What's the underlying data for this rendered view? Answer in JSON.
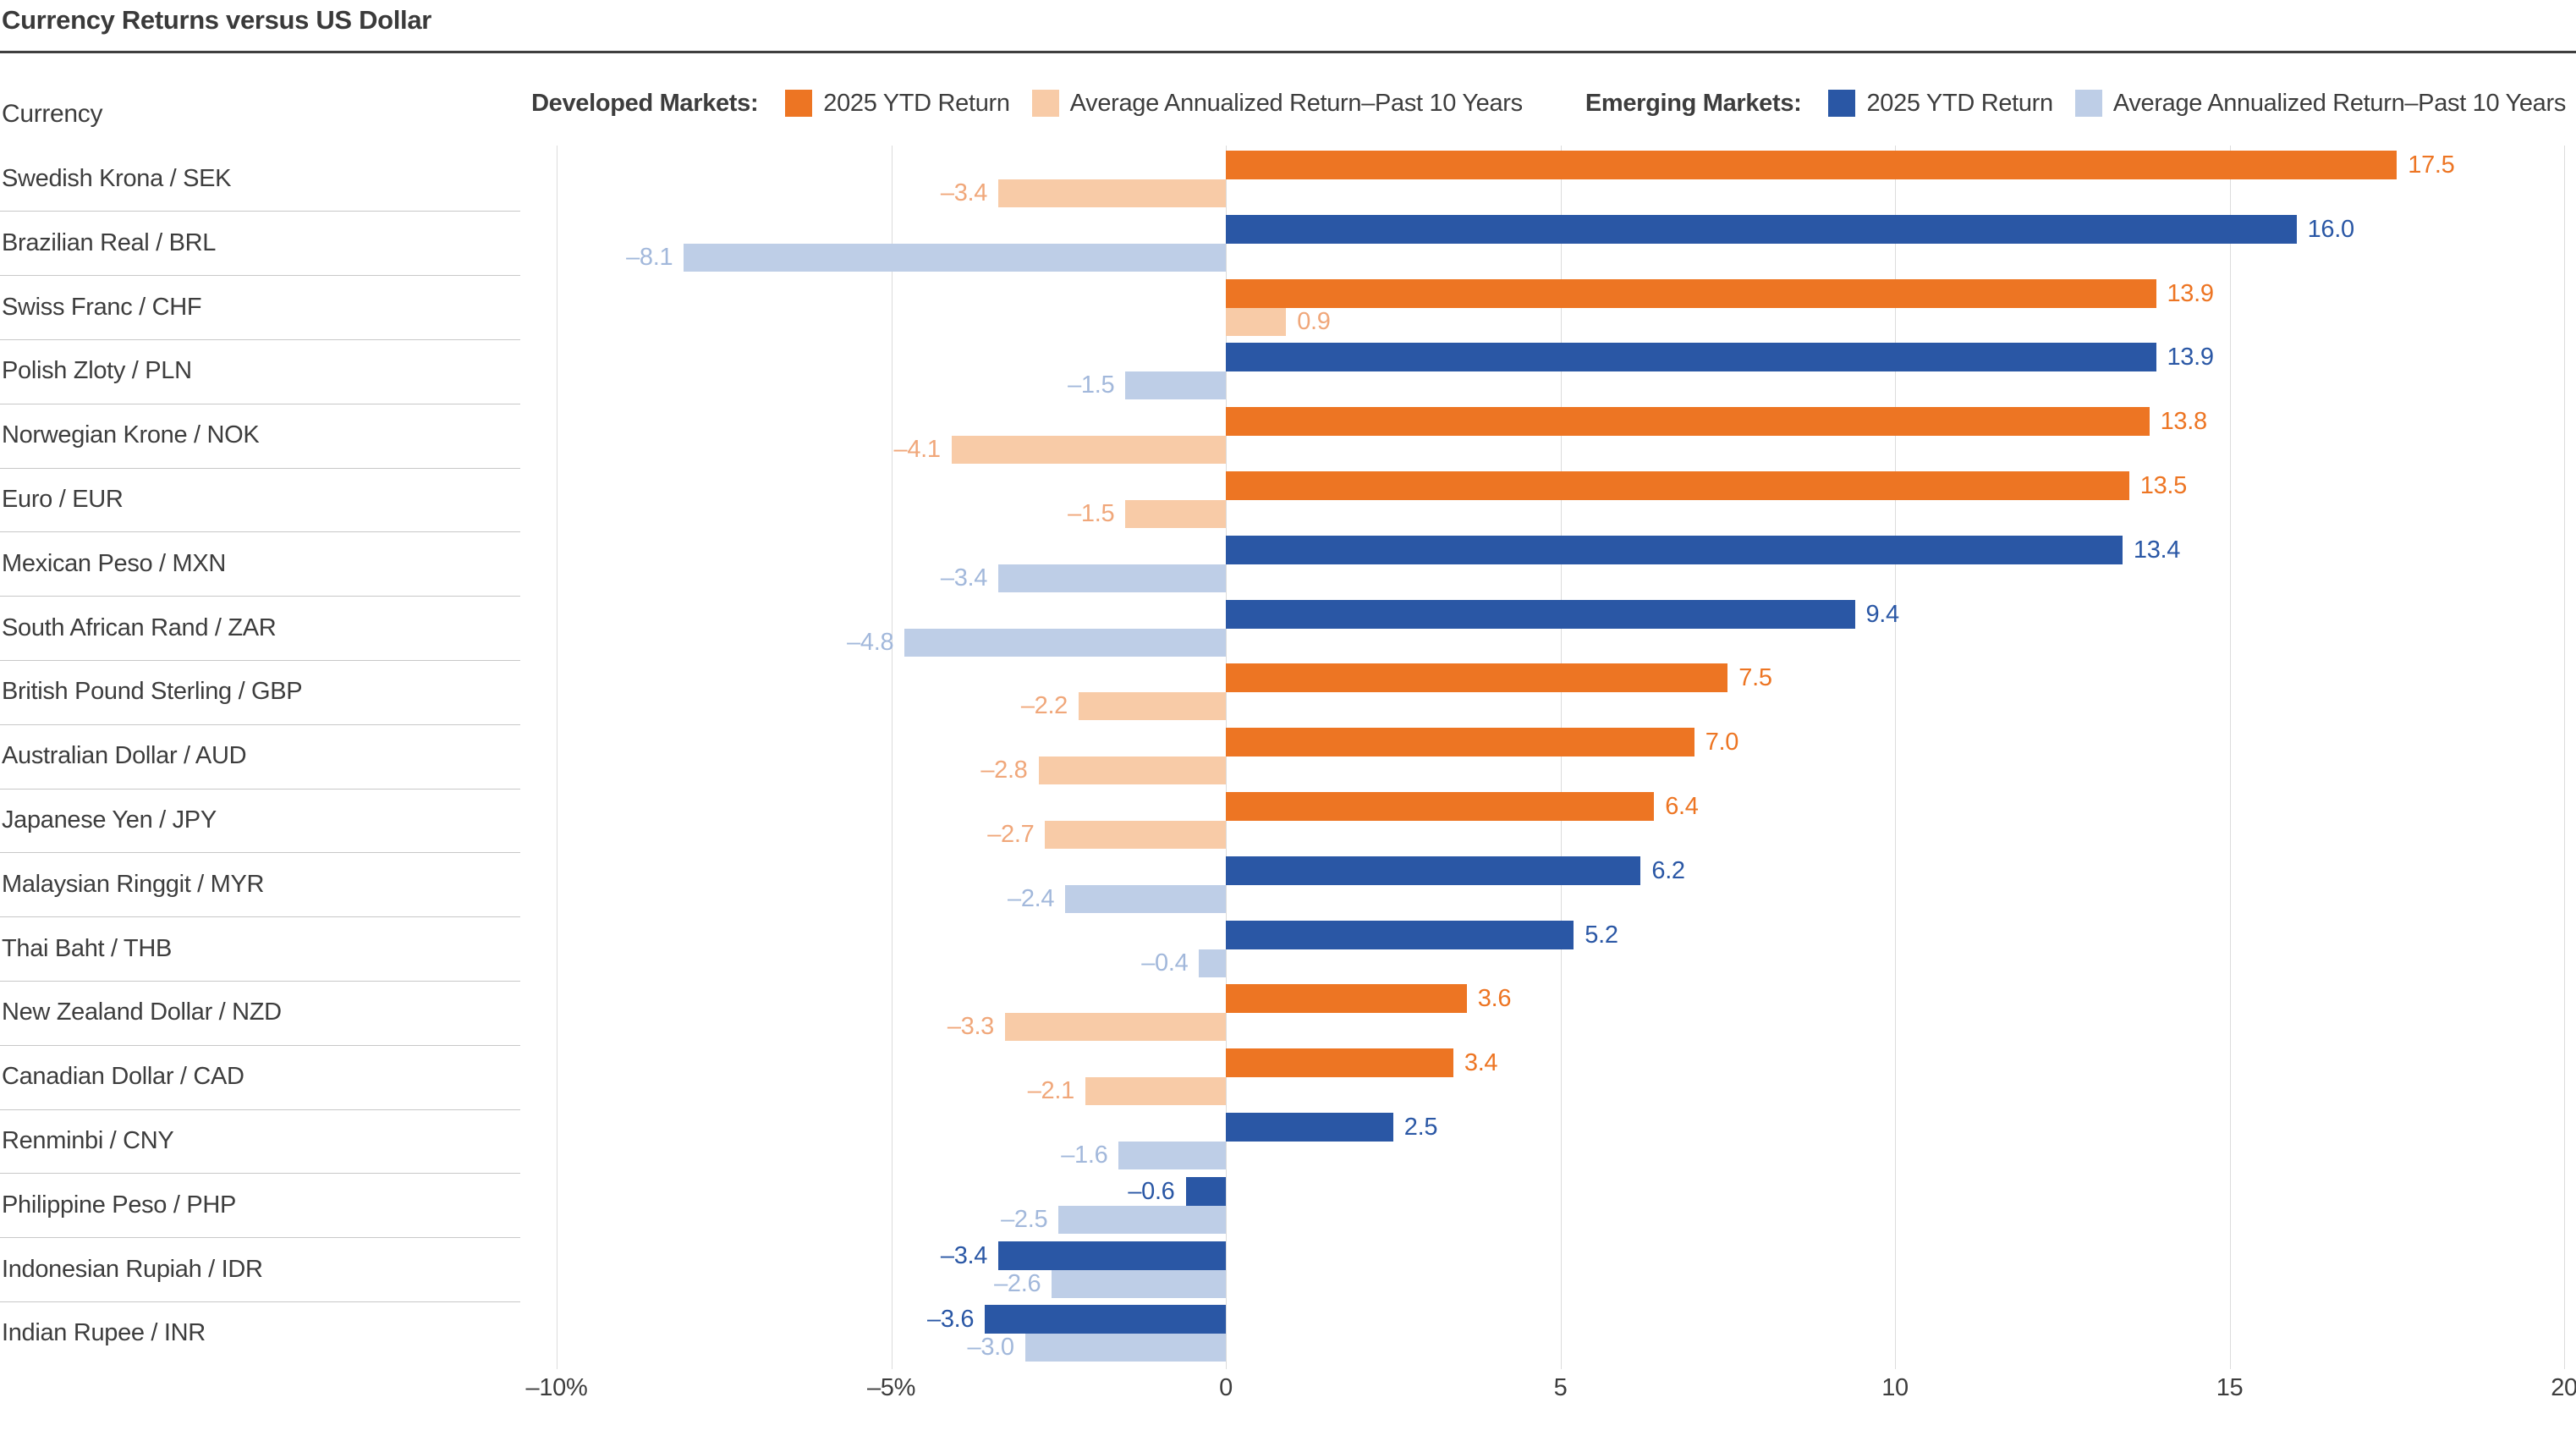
{
  "title": "Currency Returns versus US Dollar",
  "columns": {
    "currency_header": "Currency"
  },
  "legend": {
    "developed_label": "Developed Markets:",
    "emerging_label": "Emerging Markets:",
    "ytd_label": "2025 YTD Return",
    "avg_label": "Average Annualized Return–Past 10 Years"
  },
  "colors": {
    "developed_ytd": "#ED7523",
    "developed_avg": "#F8CBA7",
    "developed_avg_text": "#F0A77A",
    "emerging_ytd": "#2A57A5",
    "emerging_avg": "#BECEE7",
    "emerging_avg_text": "#A2B8DB",
    "text": "#3D3D3D",
    "gridline": "#DCDCDC",
    "separator": "#C8C8C8",
    "title_rule": "#3F3F3F"
  },
  "chart_data": {
    "type": "bar",
    "orientation": "horizontal",
    "title": "Currency Returns versus US Dollar",
    "xlabel": "",
    "ylabel": "Currency",
    "xlim": [
      -10,
      20
    ],
    "grid": true,
    "legend_position": "top-right",
    "x_tick_values": [
      -10,
      -5,
      0,
      5,
      10,
      15,
      20
    ],
    "x_tick_labels": [
      "–10%",
      "–5%",
      "0",
      "5",
      "10",
      "15",
      "20"
    ],
    "series_names": [
      "2025 YTD Return",
      "Average Annualized Return–Past 10 Years"
    ],
    "rows": [
      {
        "currency": "Swedish Krona / SEK",
        "market": "developed",
        "ytd": 17.5,
        "avg10y": -3.4
      },
      {
        "currency": "Brazilian Real / BRL",
        "market": "emerging",
        "ytd": 16.0,
        "avg10y": -8.1
      },
      {
        "currency": "Swiss Franc / CHF",
        "market": "developed",
        "ytd": 13.9,
        "avg10y": 0.9
      },
      {
        "currency": "Polish Zloty / PLN",
        "market": "emerging",
        "ytd": 13.9,
        "avg10y": -1.5
      },
      {
        "currency": "Norwegian Krone / NOK",
        "market": "developed",
        "ytd": 13.8,
        "avg10y": -4.1
      },
      {
        "currency": "Euro / EUR",
        "market": "developed",
        "ytd": 13.5,
        "avg10y": -1.5
      },
      {
        "currency": "Mexican Peso / MXN",
        "market": "emerging",
        "ytd": 13.4,
        "avg10y": -3.4
      },
      {
        "currency": "South African Rand / ZAR",
        "market": "emerging",
        "ytd": 9.4,
        "avg10y": -4.8
      },
      {
        "currency": "British Pound Sterling / GBP",
        "market": "developed",
        "ytd": 7.5,
        "avg10y": -2.2
      },
      {
        "currency": "Australian Dollar / AUD",
        "market": "developed",
        "ytd": 7.0,
        "avg10y": -2.8
      },
      {
        "currency": "Japanese Yen / JPY",
        "market": "developed",
        "ytd": 6.4,
        "avg10y": -2.7
      },
      {
        "currency": "Malaysian Ringgit / MYR",
        "market": "emerging",
        "ytd": 6.2,
        "avg10y": -2.4
      },
      {
        "currency": "Thai Baht / THB",
        "market": "emerging",
        "ytd": 5.2,
        "avg10y": -0.4
      },
      {
        "currency": "New Zealand Dollar / NZD",
        "market": "developed",
        "ytd": 3.6,
        "avg10y": -3.3
      },
      {
        "currency": "Canadian Dollar / CAD",
        "market": "developed",
        "ytd": 3.4,
        "avg10y": -2.1
      },
      {
        "currency": "Renminbi / CNY",
        "market": "emerging",
        "ytd": 2.5,
        "avg10y": -1.6
      },
      {
        "currency": "Philippine Peso / PHP",
        "market": "emerging",
        "ytd": -0.6,
        "avg10y": -2.5
      },
      {
        "currency": "Indonesian Rupiah / IDR",
        "market": "emerging",
        "ytd": -3.4,
        "avg10y": -2.6
      },
      {
        "currency": "Indian Rupee / INR",
        "market": "emerging",
        "ytd": -3.6,
        "avg10y": -3.0
      }
    ]
  }
}
